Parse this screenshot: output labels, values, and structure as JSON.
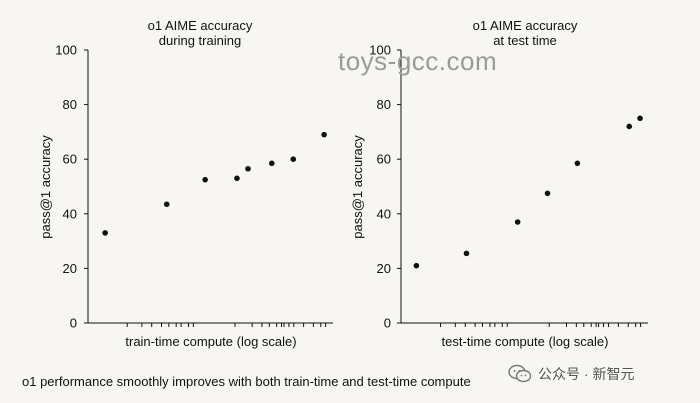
{
  "chart_data": [
    {
      "type": "scatter",
      "title_lines": [
        "o1 AIME accuracy",
        "during training"
      ],
      "xlabel": "train-time compute (log scale)",
      "ylabel": "pass@1 accuracy",
      "ylim": [
        0,
        100
      ],
      "yticks": [
        "0",
        "20",
        "40",
        "60",
        "80",
        "100"
      ],
      "xscale": "log",
      "x_tick_labels": [],
      "points": [
        {
          "x": 1.0,
          "y": 33
        },
        {
          "x": 3.6,
          "y": 43.5
        },
        {
          "x": 8.0,
          "y": 52.5
        },
        {
          "x": 15.5,
          "y": 53
        },
        {
          "x": 19.5,
          "y": 56.5
        },
        {
          "x": 32,
          "y": 58.5
        },
        {
          "x": 50,
          "y": 60
        },
        {
          "x": 95,
          "y": 69
        }
      ]
    },
    {
      "type": "scatter",
      "title_lines": [
        "o1 AIME accuracy",
        "at test time"
      ],
      "xlabel": "test-time compute (log scale)",
      "ylabel": "pass@1 accuracy",
      "ylim": [
        0,
        100
      ],
      "yticks": [
        "0",
        "20",
        "40",
        "60",
        "80",
        "100"
      ],
      "xscale": "log",
      "x_tick_labels": [],
      "points": [
        {
          "x": 1.0,
          "y": 21
        },
        {
          "x": 3.2,
          "y": 25.5
        },
        {
          "x": 10.5,
          "y": 37
        },
        {
          "x": 21,
          "y": 47.5
        },
        {
          "x": 42,
          "y": 58.5
        },
        {
          "x": 140,
          "y": 72
        },
        {
          "x": 180,
          "y": 75
        }
      ]
    }
  ],
  "caption": "o1 performance smoothly improves with both train-time and test-time compute",
  "watermark": "toys-gcc.com",
  "footer_mark": "公众号 · 新智元"
}
